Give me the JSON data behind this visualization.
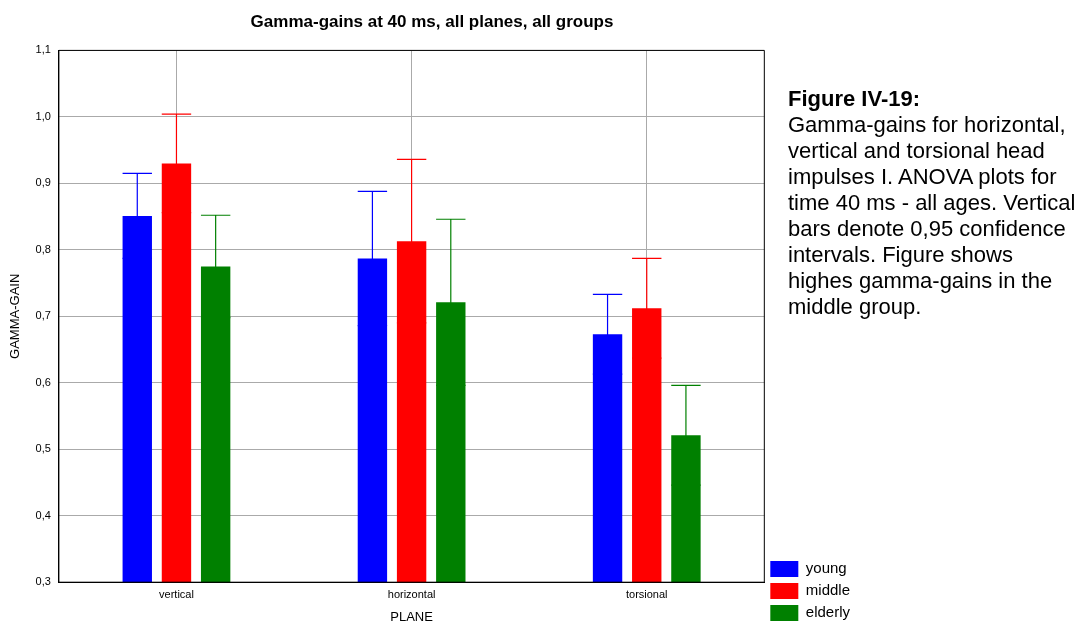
{
  "chart_data": {
    "type": "bar",
    "title": "Gamma-gains at 40 ms, all planes, all groups",
    "xlabel": "PLANE",
    "ylabel": "GAMMA-GAIN",
    "categories": [
      "vertical",
      "horizontal",
      "torsional"
    ],
    "series": [
      {
        "name": "young",
        "color": "#0000ff",
        "values": [
          0.851,
          0.787,
          0.673
        ],
        "errors": [
          0.064,
          0.101,
          0.06
        ]
      },
      {
        "name": "middle",
        "color": "#ff0000",
        "values": [
          0.93,
          0.813,
          0.712
        ],
        "errors": [
          0.074,
          0.123,
          0.075
        ]
      },
      {
        "name": "elderly",
        "color": "#008000",
        "values": [
          0.775,
          0.721,
          0.521
        ],
        "errors": [
          0.077,
          0.125,
          0.075
        ]
      }
    ],
    "ylim": [
      0.3,
      1.1
    ],
    "yticks": [
      {
        "value": 0.3,
        "label": "0,3"
      },
      {
        "value": 0.4,
        "label": "0,4"
      },
      {
        "value": 0.5,
        "label": "0,5"
      },
      {
        "value": 0.6,
        "label": "0,6"
      },
      {
        "value": 0.7,
        "label": "0,7"
      },
      {
        "value": 0.8,
        "label": "0,8"
      },
      {
        "value": 0.9,
        "label": "0,9"
      },
      {
        "value": 1.0,
        "label": "1,0"
      },
      {
        "value": 1.1,
        "label": "1,1"
      }
    ],
    "grid": true,
    "legend": "bottom right",
    "annotations": [
      "Figure IV-19:",
      "Gamma-gains for horizontal, vertical and torsional head impulses I. ANOVA plots for time 40 ms - all ages. Vertical bars denote 0,95 confidence intervals. Figure shows highes gamma-gains in the middle group."
    ]
  }
}
